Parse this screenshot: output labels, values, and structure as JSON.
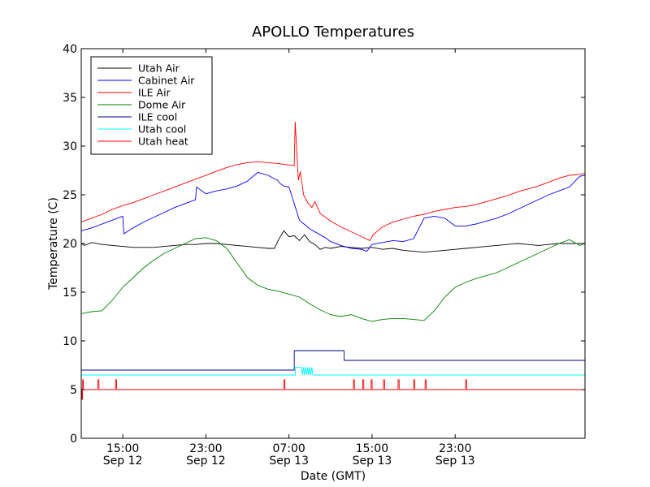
{
  "chart_data": {
    "type": "line",
    "title": "APOLLO Temperatures",
    "xlabel": "Date (GMT)",
    "ylabel": "Temperature (C)",
    "xlim": [
      11.0,
      59.5
    ],
    "ylim": [
      0,
      40
    ],
    "yticks": [
      0,
      5,
      10,
      15,
      20,
      25,
      30,
      35,
      40
    ],
    "xticks": [
      {
        "x": 15,
        "line1": "15:00",
        "line2": "Sep 12"
      },
      {
        "x": 23,
        "line1": "23:00",
        "line2": "Sep 12"
      },
      {
        "x": 31,
        "line1": "07:00",
        "line2": "Sep 13"
      },
      {
        "x": 39,
        "line1": "15:00",
        "line2": "Sep 13"
      },
      {
        "x": 47,
        "line1": "23:00",
        "line2": "Sep 13"
      }
    ],
    "legend_position": "top-left",
    "series": [
      {
        "name": "Utah Air",
        "color": "#000000",
        "x": [
          11,
          11.3,
          12,
          13,
          14,
          15,
          16,
          17,
          18,
          19,
          20,
          21,
          22,
          23,
          24,
          25,
          26,
          27,
          28,
          29,
          29.6,
          30,
          30.5,
          31,
          31.5,
          32,
          32.5,
          33,
          33.5,
          34,
          34.5,
          35,
          36,
          37,
          38,
          39,
          40,
          41,
          42,
          43,
          44,
          45,
          46,
          47,
          48,
          49,
          50,
          51,
          52,
          53,
          54,
          55,
          56,
          57,
          58,
          59.5
        ],
        "y": [
          20,
          19.8,
          20.1,
          19.9,
          19.8,
          19.7,
          19.6,
          19.6,
          19.6,
          19.7,
          19.8,
          19.9,
          19.9,
          20.0,
          20.0,
          19.9,
          19.8,
          19.7,
          19.6,
          19.5,
          19.5,
          20.4,
          21.3,
          20.7,
          20.8,
          20.3,
          20.9,
          20.2,
          19.9,
          19.4,
          19.6,
          19.5,
          19.7,
          19.6,
          19.5,
          19.6,
          19.4,
          19.5,
          19.3,
          19.2,
          19.1,
          19.2,
          19.3,
          19.4,
          19.5,
          19.6,
          19.7,
          19.8,
          19.9,
          20.0,
          19.9,
          19.8,
          19.9,
          20.0,
          20.0,
          20.0
        ]
      },
      {
        "name": "Cabinet Air",
        "color": "#0000ff",
        "x": [
          11,
          12,
          13,
          14,
          15,
          15.1,
          16,
          17,
          18,
          19,
          20,
          21,
          22,
          22.1,
          23,
          24,
          25,
          26,
          27,
          28,
          29,
          29.5,
          29.9,
          30.1,
          30.5,
          31,
          32,
          33,
          34,
          34.5,
          35,
          36,
          37,
          38,
          38.5,
          39,
          40,
          41,
          42,
          43,
          44,
          45,
          46,
          47,
          48,
          49,
          50,
          51,
          52,
          53,
          54,
          55,
          56,
          57,
          58,
          59,
          59.5
        ],
        "y": [
          21.3,
          21.6,
          22.0,
          22.4,
          22.8,
          21.0,
          21.6,
          22.2,
          22.7,
          23.2,
          23.7,
          24.1,
          24.5,
          25.8,
          25.1,
          25.4,
          25.6,
          25.9,
          26.4,
          27.3,
          27.0,
          26.7,
          26.5,
          26.2,
          25.9,
          25.8,
          22.4,
          21.5,
          20.9,
          20.6,
          20.2,
          19.8,
          19.5,
          19.4,
          19.2,
          19.9,
          20.1,
          20.3,
          20.2,
          20.5,
          22.6,
          22.8,
          22.6,
          21.8,
          21.8,
          22.0,
          22.3,
          22.6,
          23.0,
          23.5,
          24.0,
          24.5,
          25.0,
          25.4,
          25.8,
          26.9,
          27.0
        ]
      },
      {
        "name": "ILE Air",
        "color": "#ff0000",
        "x": [
          11,
          12,
          13,
          14,
          15,
          16,
          17,
          18,
          19,
          20,
          21,
          22,
          23,
          24,
          25,
          26,
          27,
          28,
          29,
          30,
          30.7,
          31.5,
          31.6,
          31.9,
          32.1,
          32.4,
          32.8,
          33.2,
          33.5,
          34,
          35,
          36,
          37,
          38,
          38.8,
          39.1,
          40,
          41,
          42,
          43,
          44,
          45,
          46,
          47,
          48,
          49,
          50,
          51,
          52,
          53,
          54,
          55,
          56,
          57,
          58,
          59,
          59.5
        ],
        "y": [
          22.2,
          22.6,
          23.0,
          23.5,
          23.9,
          24.2,
          24.6,
          25.0,
          25.4,
          25.8,
          26.2,
          26.6,
          27.0,
          27.4,
          27.8,
          28.1,
          28.3,
          28.4,
          28.3,
          28.2,
          28.1,
          28.0,
          32.5,
          26.5,
          27.4,
          25.0,
          24.2,
          23.7,
          24.3,
          23.1,
          22.3,
          21.7,
          21.2,
          20.7,
          20.3,
          20.9,
          21.7,
          22.2,
          22.5,
          22.8,
          23.0,
          23.3,
          23.5,
          23.7,
          23.8,
          24.0,
          24.3,
          24.6,
          24.9,
          25.3,
          25.6,
          25.9,
          26.3,
          26.7,
          27.0,
          27.1,
          27.2
        ]
      },
      {
        "name": "Dome Air",
        "color": "#008000",
        "x": [
          11,
          12,
          13,
          14,
          15,
          16,
          17,
          18,
          19,
          20,
          21,
          22,
          23,
          24,
          25,
          26,
          27,
          28,
          29,
          30,
          31,
          32,
          33,
          34,
          35,
          36,
          37,
          38,
          39,
          40,
          41,
          42,
          43,
          44,
          45,
          46,
          47,
          48,
          49,
          50,
          51,
          52,
          53,
          54,
          55,
          56,
          57,
          58,
          59,
          59.5
        ],
        "y": [
          12.8,
          13.0,
          13.1,
          14.2,
          15.5,
          16.5,
          17.5,
          18.3,
          19.0,
          19.5,
          20.0,
          20.5,
          20.6,
          20.3,
          19.5,
          18.0,
          16.5,
          15.7,
          15.3,
          15.1,
          14.8,
          14.5,
          13.8,
          13.2,
          12.7,
          12.5,
          12.7,
          12.3,
          12.0,
          12.2,
          12.3,
          12.3,
          12.2,
          12.1,
          13.1,
          14.5,
          15.5,
          16.0,
          16.4,
          16.7,
          17.0,
          17.5,
          18.0,
          18.5,
          19.0,
          19.5,
          20.0,
          20.4,
          19.8,
          20.0
        ]
      },
      {
        "name": "ILE cool",
        "color": "#000080",
        "x": [
          11,
          31.5,
          31.51,
          36.3,
          36.31,
          59.5
        ],
        "y": [
          7,
          7,
          9,
          9,
          8,
          8
        ]
      },
      {
        "name": "Utah cool",
        "color": "#00ffff",
        "x": [
          11,
          31.6,
          31.61,
          32.2,
          32.3,
          32.4,
          32.5,
          32.6,
          32.7,
          32.8,
          32.9,
          33.0,
          33.1,
          33.2,
          33.3,
          33.31,
          59.5
        ],
        "y": [
          6.5,
          6.5,
          7.3,
          7.3,
          6.5,
          7.3,
          6.5,
          7.3,
          6.5,
          7.3,
          6.5,
          7.3,
          6.5,
          7.3,
          6.5,
          6.5,
          6.5
        ]
      },
      {
        "name": "Utah heat",
        "color": "#ff0000",
        "x": [
          11,
          11.05,
          11.06,
          11.12,
          11.14,
          11.2,
          11.21,
          12.6,
          12.61,
          12.7,
          12.71,
          14.3,
          14.31,
          14.4,
          14.41,
          30.5,
          30.51,
          30.6,
          30.61,
          37.2,
          37.21,
          37.3,
          37.31,
          38.1,
          38.11,
          38.2,
          38.21,
          38.9,
          38.91,
          39.0,
          39.01,
          40.1,
          40.11,
          40.2,
          40.21,
          41.5,
          41.51,
          41.6,
          41.61,
          43.0,
          43.01,
          43.1,
          43.11,
          44.1,
          44.11,
          44.2,
          44.21,
          48.0,
          48.01,
          48.1,
          48.11,
          59.5
        ],
        "y": [
          5,
          5,
          4,
          4,
          6,
          6,
          5,
          5,
          6,
          6,
          5,
          5,
          6,
          6,
          5,
          5,
          6,
          6,
          5,
          5,
          6,
          6,
          5,
          5,
          6,
          6,
          5,
          5,
          6,
          6,
          5,
          5,
          6,
          6,
          5,
          5,
          6,
          6,
          5,
          5,
          6,
          6,
          5,
          5,
          6,
          6,
          5,
          5,
          6,
          6,
          5,
          5
        ]
      }
    ]
  }
}
